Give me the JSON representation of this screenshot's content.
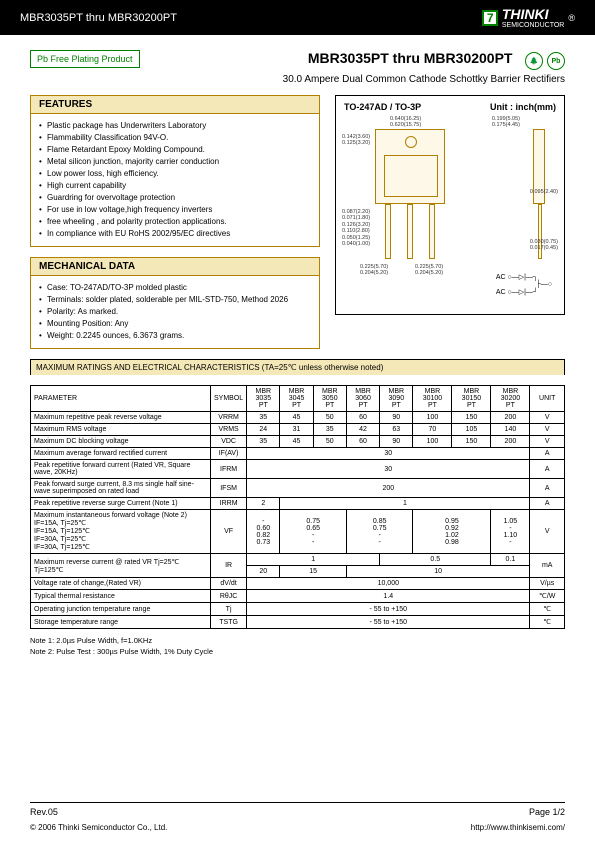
{
  "header": {
    "title": "MBR3035PT thru MBR30200PT",
    "brand": "THINKI",
    "brand_sub": "SEMICONDUCTOR"
  },
  "badge": "Pb Free Plating Product",
  "main_title": "MBR3035PT thru MBR30200PT",
  "sub_title": "30.0 Ampere Dual Common Cathode Schottky Barrier Rectifiers",
  "eco": {
    "rohs": "RoHS",
    "pb": "Pb"
  },
  "features": {
    "title": "FEATURES",
    "items": [
      "Plastic package has Underwriters Laboratory",
      "Flammability Classification 94V-O.",
      "Flame Retardant Epoxy Molding Compound.",
      "Metal silicon junction, majority carrier conduction",
      "Low power loss, high efficiency.",
      "High current capability",
      "Guardring for overvoltage protection",
      "For use in low voltage,high frequency inverters",
      "free wheeling , and polarity protection applications.",
      "In compliance with EU RoHS 2002/95/EC directives"
    ]
  },
  "mech": {
    "title": "MECHANICAL DATA",
    "items": [
      "Case: TO-247AD/TO-3P molded plastic",
      "Terminals: solder plated, solderable per MIL-STD-750, Method 2026",
      "Polarity: As marked.",
      "Mounting Position: Any",
      "Weight: 0.2245 ounces, 6.3673 grams."
    ]
  },
  "diagram": {
    "title": "TO-247AD / TO-3P",
    "unit_label": "Unit : inch(mm)",
    "dims": {
      "d1": "0.640(16.25)",
      "d2": "0.620(15.75)",
      "d3": "0.142(3.60)",
      "d4": "0.125(3.20)",
      "d5": "0.199(5.05)",
      "d6": "0.175(4.45)",
      "d7": "0.087(2.20)",
      "d8": "0.071(1.80)",
      "d9": "0.126(3.20)",
      "d10": "0.110(2.80)",
      "d11": "0.050(1.25)",
      "d12": "0.040(1.00)",
      "d13": "0.225(5.70)",
      "d14": "0.204(5.20)",
      "d15": "0.095(2.40)",
      "d16": "0.030(0.75)",
      "d17": "0.017(0.45)",
      "d18": "0.830(21.00)",
      "d19": "0.780(19.80)",
      "d20": "0.090(14.80)",
      "d21": "0.060(13.80)",
      "d22": "0.170(4.30)",
      "d23": "0.145(3.70)"
    },
    "circuit": {
      "ac1": "AC",
      "ac2": "AC"
    }
  },
  "table": {
    "caption": "MAXIMUM RATINGS AND ELECTRICAL CHARACTERISTICS (TA=25℃ unless otherwise noted)",
    "headers": {
      "param": "PARAMETER",
      "symbol": "SYMBOL",
      "unit": "UNIT"
    },
    "parts": [
      "MBR 3035 PT",
      "MBR 3045 PT",
      "MBR 3050 PT",
      "MBR 3060 PT",
      "MBR 3090 PT",
      "MBR 30100 PT",
      "MBR 30150 PT",
      "MBR 30200 PT"
    ],
    "rows": [
      {
        "p": "Maximum repetitive peak reverse voltage",
        "s": "VRRM",
        "v": [
          "35",
          "45",
          "50",
          "60",
          "90",
          "100",
          "150",
          "200"
        ],
        "u": "V"
      },
      {
        "p": "Maximum RMS voltage",
        "s": "VRMS",
        "v": [
          "24",
          "31",
          "35",
          "42",
          "63",
          "70",
          "105",
          "140"
        ],
        "u": "V"
      },
      {
        "p": "Maximum DC blocking voltage",
        "s": "VDC",
        "v": [
          "35",
          "45",
          "50",
          "60",
          "90",
          "100",
          "150",
          "200"
        ],
        "u": "V"
      },
      {
        "p": "Maximum average forward rectified current",
        "s": "IF(AV)",
        "span": "30",
        "u": "A"
      },
      {
        "p": "Peak repetitive forward current (Rated VR, Square wave, 20KHz)",
        "s": "IFRM",
        "span": "30",
        "u": "A"
      },
      {
        "p": "Peak forward surge current, 8.3 ms single half sine-wave superimposed on rated load",
        "s": "IFSM",
        "span": "200",
        "u": "A"
      },
      {
        "p": "Peak repetitive reverse surge Current (Note 1)",
        "s": "IRRM",
        "v2": [
          "2",
          "1"
        ],
        "spans": [
          1,
          7
        ],
        "u": "A"
      }
    ],
    "vf": {
      "p": "Maximum instantaneous forward voltage (Note 2)",
      "lines": [
        "IF=15A, Tj=25℃",
        "IF=15A, Tj=125℃",
        "IF=30A, Tj=25℃",
        "IF=30A, Tj=125℃"
      ],
      "s": "VF",
      "cols": [
        [
          "-",
          "0.60",
          "0.82",
          "0.73"
        ],
        [
          "0.75",
          "0.65",
          "-",
          "-"
        ],
        [
          "0.85",
          "0.75",
          "-",
          "-"
        ],
        [
          "0.95",
          "0.92",
          "1.02",
          "0.98"
        ],
        [
          "1.05",
          "-",
          "1.10",
          "-"
        ]
      ],
      "col_spans": [
        1,
        2,
        2,
        2,
        1
      ],
      "u": "V"
    },
    "ir": {
      "p": "Maximum reverse current @ rated VR   Tj=25℃",
      "p2": "Tj=125℃",
      "s": "IR",
      "r1": [
        "1",
        "0.5",
        "0.1"
      ],
      "r1s": [
        4,
        3,
        1
      ],
      "r2": [
        "20",
        "15",
        "10"
      ],
      "r2s": [
        1,
        2,
        5
      ],
      "u": "mA"
    },
    "simple": [
      {
        "p": "Voltage rate of change,(Rated VR)",
        "s": "dV/dt",
        "span": "10,000",
        "u": "V/µs"
      },
      {
        "p": "Typical thermal resistance",
        "s": "RθJC",
        "span": "1.4",
        "u": "℃/W"
      },
      {
        "p": "Operating junction temperature range",
        "s": "Tj",
        "span": "- 55 to +150",
        "u": "℃"
      },
      {
        "p": "Storage temperature range",
        "s": "TSTG",
        "span": "- 55 to +150",
        "u": "℃"
      }
    ]
  },
  "notes": {
    "n1": "Note 1: 2.0µs Pulse Width, f=1.0KHz",
    "n2": "Note 2: Pulse Test : 300µs Pulse Width, 1% Duty Cycle"
  },
  "footer": {
    "rev": "Rev.05",
    "page": "Page 1/2",
    "copyright": "© 2006 Thinki Semiconductor Co., Ltd.",
    "url": "http://www.thinkisemi.com/"
  }
}
